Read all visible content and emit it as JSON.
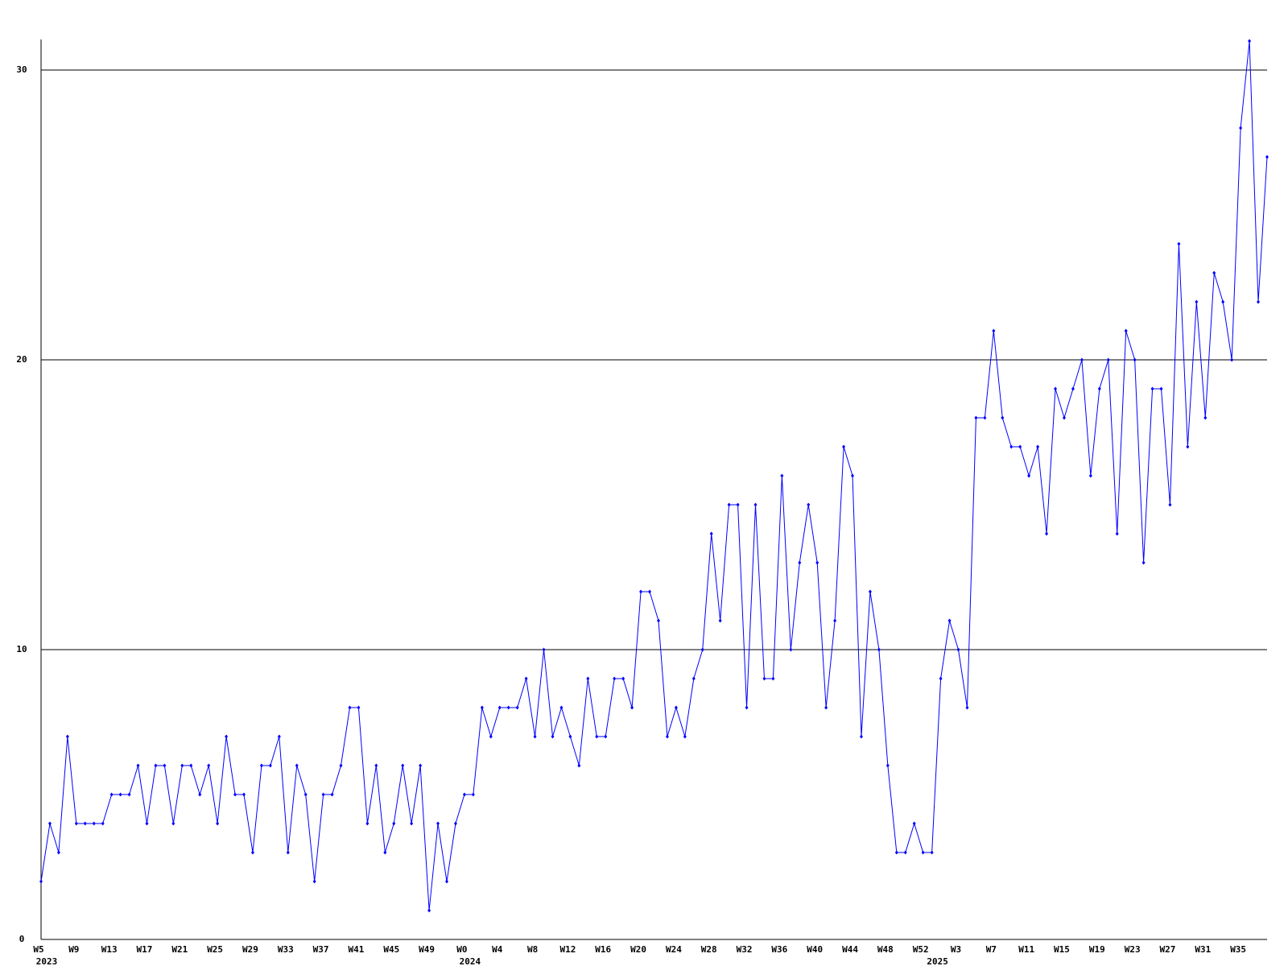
{
  "chart_data": {
    "type": "line",
    "categories": [
      "W5",
      null,
      null,
      null,
      "W9",
      null,
      null,
      null,
      "W13",
      null,
      null,
      null,
      "W17",
      null,
      null,
      null,
      "W21",
      null,
      null,
      null,
      "W25",
      null,
      null,
      null,
      "W29",
      null,
      null,
      null,
      "W33",
      null,
      null,
      null,
      "W37",
      null,
      null,
      null,
      "W41",
      null,
      null,
      null,
      "W45",
      null,
      null,
      null,
      "W49",
      null,
      null,
      null,
      "W0",
      null,
      null,
      null,
      "W4",
      null,
      null,
      null,
      "W8",
      null,
      null,
      null,
      "W12",
      null,
      null,
      null,
      "W16",
      null,
      null,
      null,
      "W20",
      null,
      null,
      null,
      "W24",
      null,
      null,
      null,
      "W28",
      null,
      null,
      null,
      "W32",
      null,
      null,
      null,
      "W36",
      null,
      null,
      null,
      "W40",
      null,
      null,
      null,
      "W44",
      null,
      null,
      null,
      "W48",
      null,
      null,
      null,
      "W52",
      null,
      null,
      null,
      "W3",
      null,
      null,
      null,
      "W7",
      null,
      null,
      null,
      "W11",
      null,
      null,
      null,
      "W15",
      null,
      null,
      null,
      "W19",
      null,
      null,
      null,
      "W23",
      null,
      null,
      null,
      "W27",
      null,
      null,
      null,
      "W31",
      null,
      null,
      null,
      "W35",
      null,
      null,
      null
    ],
    "category_years": [
      "2023",
      null,
      null,
      null,
      null,
      null,
      null,
      null,
      null,
      null,
      null,
      null,
      null,
      null,
      null,
      null,
      null,
      null,
      null,
      null,
      null,
      null,
      null,
      null,
      null,
      null,
      null,
      null,
      null,
      null,
      null,
      null,
      null,
      null,
      null,
      null,
      null,
      null,
      null,
      null,
      null,
      null,
      null,
      null,
      null,
      null,
      null,
      null,
      "2024",
      null,
      null,
      null,
      null,
      null,
      null,
      null,
      null,
      null,
      null,
      null,
      null,
      null,
      null,
      null,
      null,
      null,
      null,
      null,
      null,
      null,
      null,
      null,
      null,
      null,
      null,
      null,
      null,
      null,
      null,
      null,
      null,
      null,
      null,
      null,
      null,
      null,
      null,
      null,
      null,
      null,
      null,
      null,
      null,
      null,
      null,
      null,
      null,
      null,
      null,
      null,
      null,
      "2025",
      null,
      null,
      null,
      null,
      null,
      null,
      null,
      null,
      null,
      null,
      null,
      null,
      null,
      null,
      null,
      null,
      null,
      null,
      null,
      null,
      null,
      null,
      null,
      null,
      null,
      null,
      null,
      null,
      null,
      null,
      null,
      null,
      null,
      null,
      null,
      null,
      null,
      null
    ],
    "series": [
      {
        "color": "#0000ff",
        "values": [
          2,
          4,
          3,
          7,
          4,
          4,
          4,
          4,
          5,
          5,
          5,
          6,
          4,
          6,
          6,
          4,
          6,
          6,
          5,
          6,
          4,
          7,
          5,
          5,
          3,
          6,
          6,
          7,
          3,
          6,
          5,
          2,
          5,
          5,
          6,
          8,
          8,
          4,
          6,
          3,
          4,
          6,
          4,
          6,
          1,
          4,
          2,
          4,
          5,
          5,
          8,
          7,
          8,
          8,
          8,
          9,
          7,
          10,
          7,
          8,
          7,
          6,
          9,
          7,
          7,
          9,
          9,
          8,
          12,
          12,
          11,
          7,
          8,
          7,
          9,
          10,
          14,
          11,
          15,
          15,
          8,
          15,
          9,
          9,
          16,
          10,
          13,
          15,
          13,
          8,
          11,
          17,
          16,
          7,
          12,
          10,
          6,
          3,
          3,
          4,
          3,
          3,
          9,
          11,
          10,
          8,
          18,
          18,
          21,
          18,
          17,
          17,
          16,
          17,
          14,
          19,
          18,
          19,
          20,
          16,
          19,
          20,
          14,
          21,
          20,
          13,
          19,
          19,
          15,
          24,
          17,
          22,
          18,
          23,
          22,
          20,
          28,
          31,
          22,
          27
        ]
      }
    ],
    "ylim": [
      0,
      31
    ],
    "yticks": [
      0,
      10,
      20,
      30
    ],
    "grid": true
  }
}
